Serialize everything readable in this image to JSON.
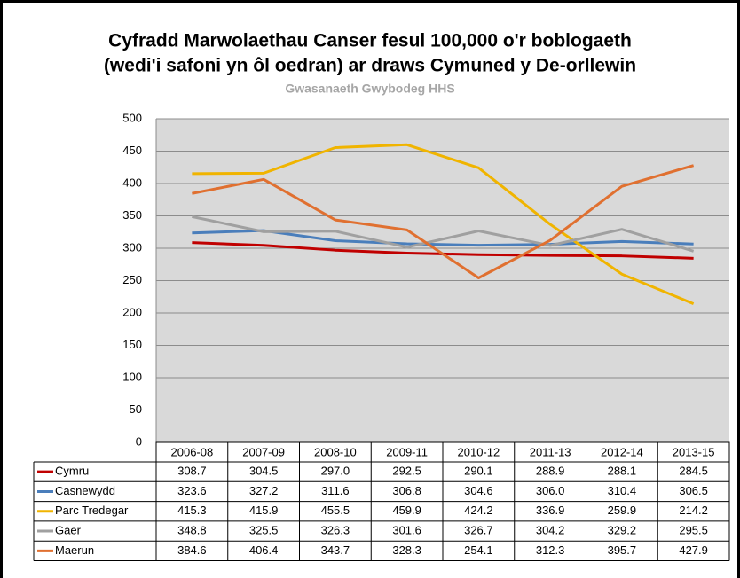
{
  "chart_data": {
    "type": "line",
    "title": [
      "Cyfradd Marwolaethau Canser fesul 100,000 o'r boblogaeth",
      "(wedi'i safoni yn ôl oedran) ar draws Cymuned y De-orllewin"
    ],
    "subtitle": "Gwasanaeth Gwybodeg HHS",
    "categories": [
      "2006-08",
      "2007-09",
      "2008-10",
      "2009-11",
      "2010-12",
      "2011-13",
      "2012-14",
      "2013-15"
    ],
    "series": [
      {
        "name": "Cymru",
        "color": "#c00000",
        "values": [
          308.7,
          304.5,
          297.0,
          292.5,
          290.1,
          288.9,
          288.1,
          284.5
        ],
        "value_labels": [
          "308.7",
          "304.5",
          "297.0",
          "292.5",
          "290.1",
          "288.9",
          "288.1",
          "284.5"
        ]
      },
      {
        "name": "Casnewydd",
        "color": "#4a7ebb",
        "values": [
          323.6,
          327.2,
          311.6,
          306.8,
          304.6,
          306.0,
          310.4,
          306.5
        ],
        "value_labels": [
          "323.6",
          "327.2",
          "311.6",
          "306.8",
          "304.6",
          "306.0",
          "310.4",
          "306.5"
        ]
      },
      {
        "name": "Parc Tredegar",
        "color": "#f0b400",
        "values": [
          415.3,
          415.9,
          455.5,
          459.9,
          424.2,
          336.9,
          259.9,
          214.2
        ],
        "value_labels": [
          "415.3",
          "415.9",
          "455.5",
          "459.9",
          "424.2",
          "336.9",
          "259.9",
          "214.2"
        ]
      },
      {
        "name": "Gaer",
        "color": "#a0a0a0",
        "values": [
          348.8,
          325.5,
          326.3,
          301.6,
          326.7,
          304.2,
          329.2,
          295.5
        ],
        "value_labels": [
          "348.8",
          "325.5",
          "326.3",
          "301.6",
          "326.7",
          "304.2",
          "329.2",
          "295.5"
        ]
      },
      {
        "name": "Maerun",
        "color": "#e07030",
        "values": [
          384.6,
          406.4,
          343.7,
          328.3,
          254.1,
          312.3,
          395.7,
          427.9
        ],
        "value_labels": [
          "384.6",
          "406.4",
          "343.7",
          "328.3",
          "254.1",
          "312.3",
          "395.7",
          "427.9"
        ]
      }
    ],
    "ylim": [
      0,
      500
    ],
    "yticks": [
      0,
      50,
      100,
      150,
      200,
      250,
      300,
      350,
      400,
      450,
      500
    ],
    "grid": true
  }
}
